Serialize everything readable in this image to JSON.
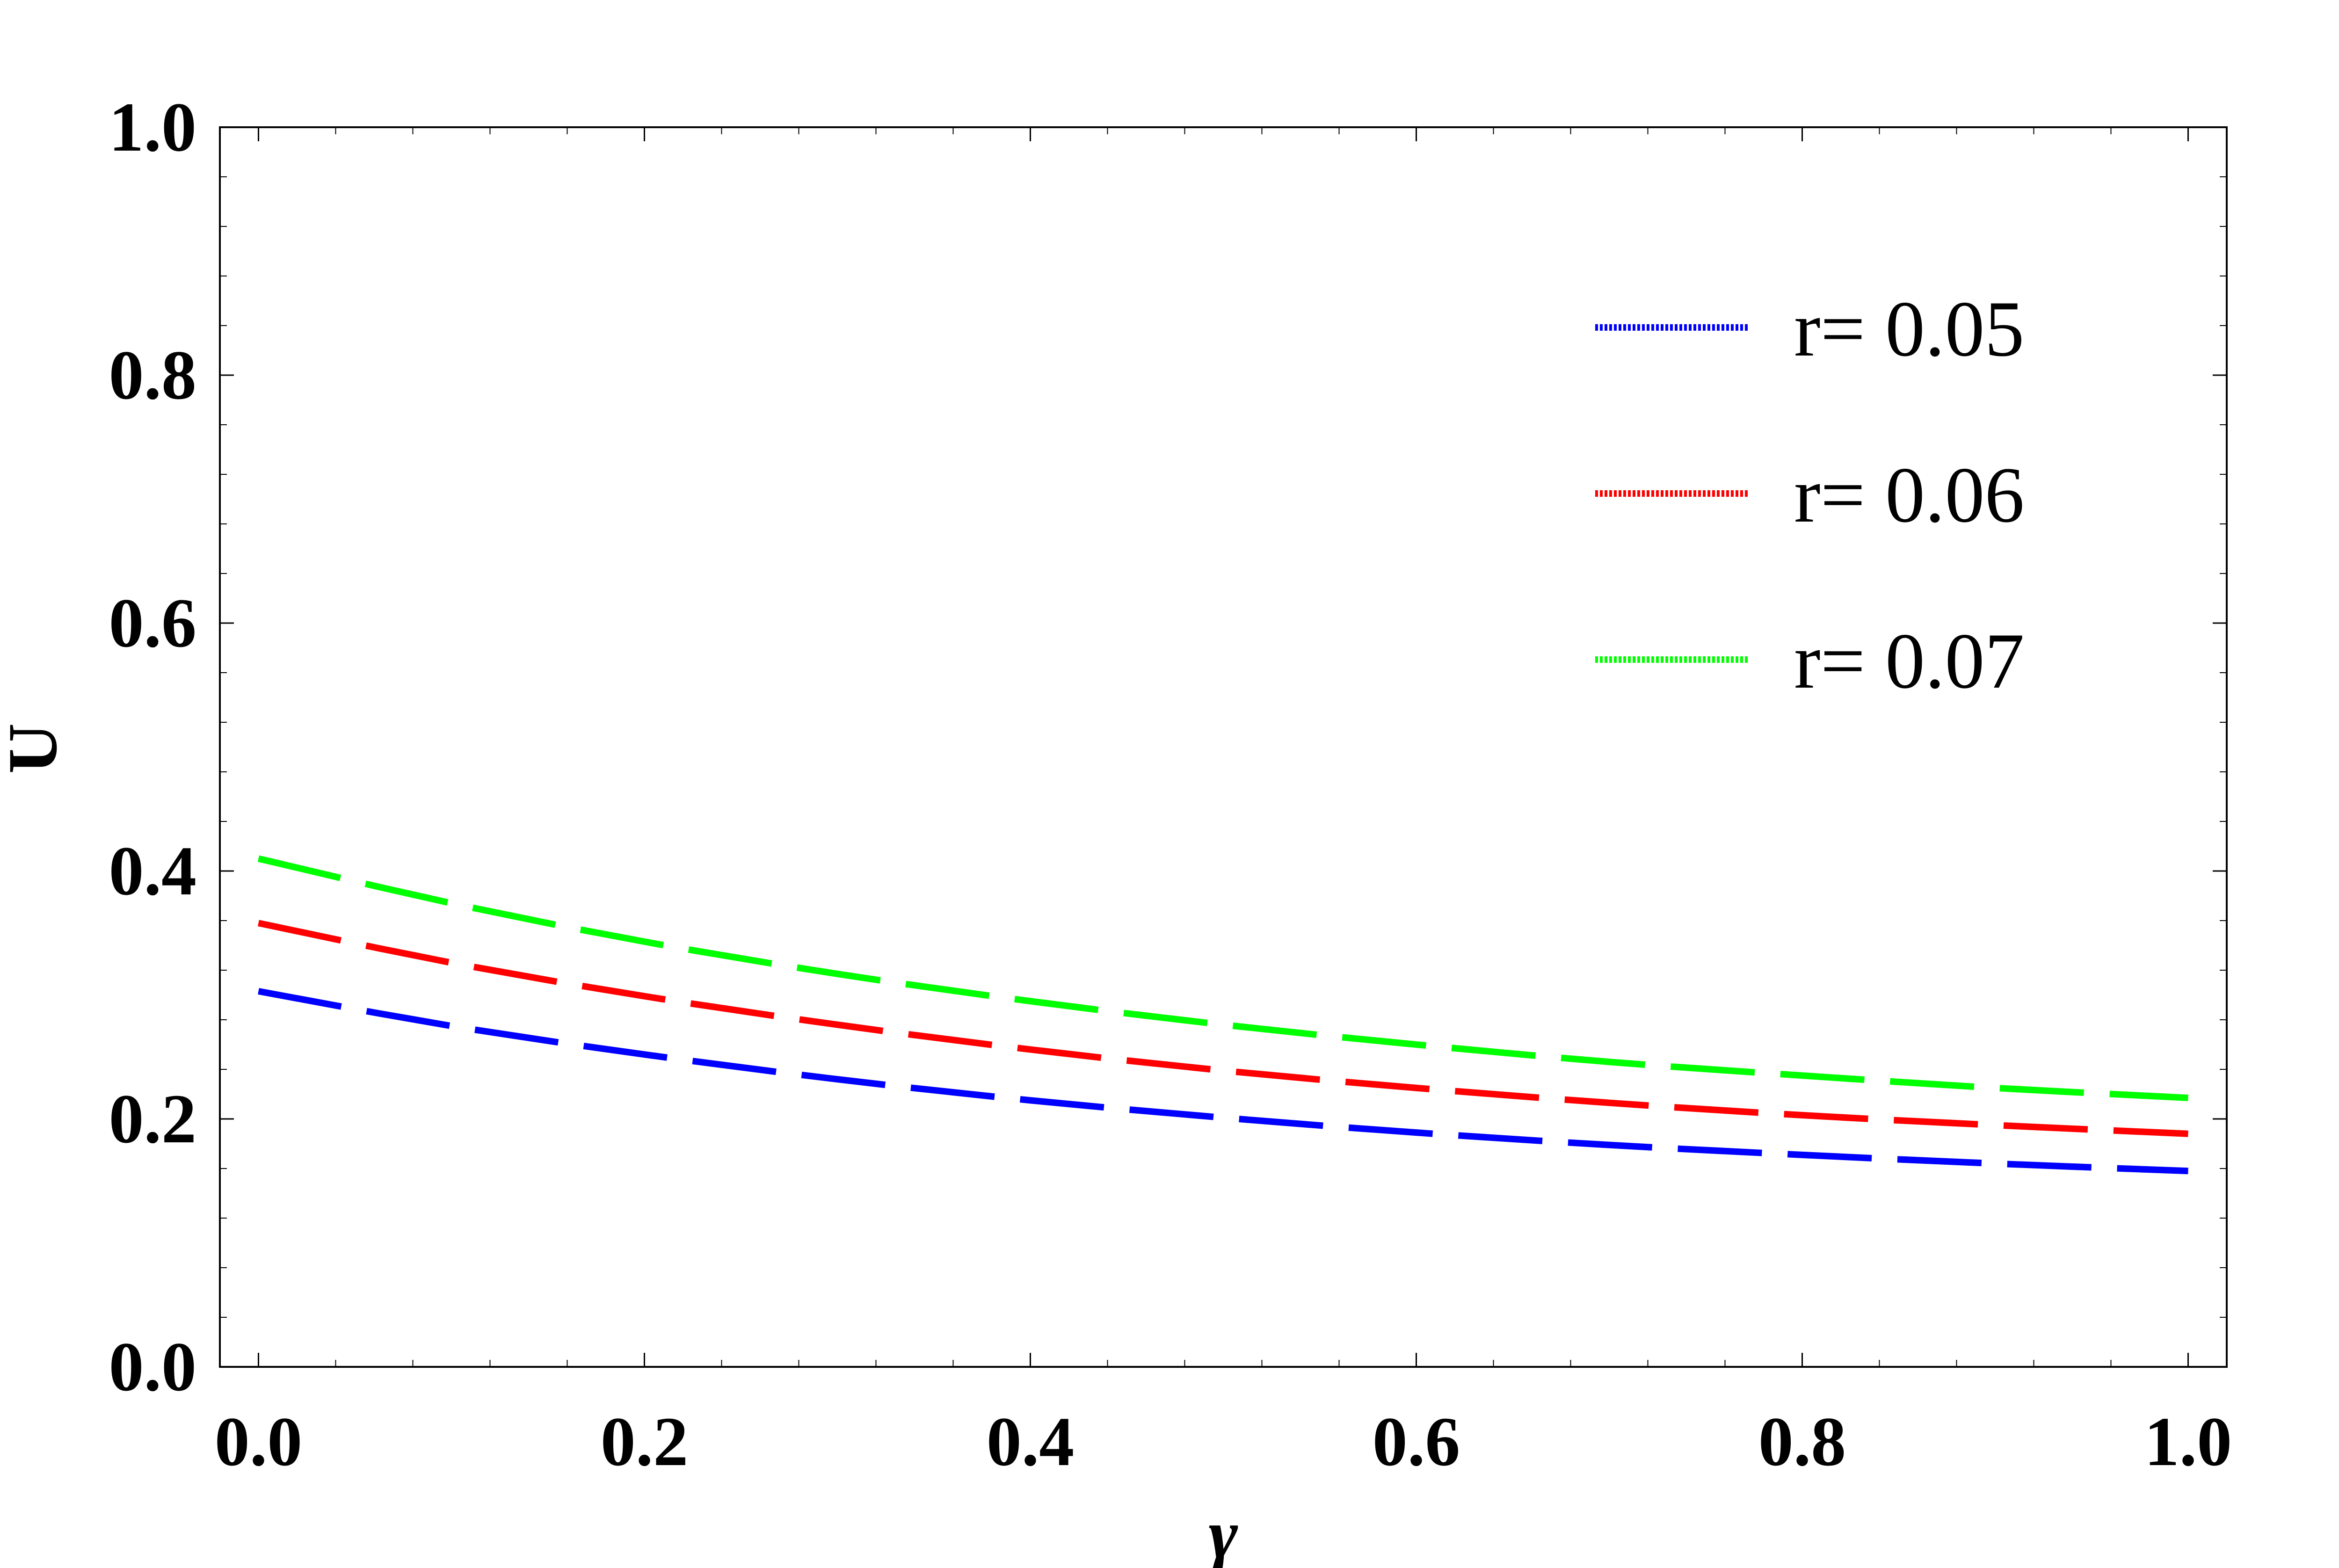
{
  "chart_data": {
    "type": "line",
    "title": "",
    "xlabel": "γ",
    "ylabel": "U",
    "xlim": [
      -0.02,
      1.02
    ],
    "ylim": [
      0.0,
      1.0
    ],
    "x_ticks": [
      0.0,
      0.2,
      0.4,
      0.6,
      0.8,
      1.0
    ],
    "x_tick_labels": [
      "0.0",
      "0.2",
      "0.4",
      "0.6",
      "0.8",
      "1.0"
    ],
    "y_ticks": [
      0.0,
      0.2,
      0.4,
      0.6,
      0.8,
      1.0
    ],
    "y_tick_labels": [
      "0.0",
      "0.2",
      "0.4",
      "0.6",
      "0.8",
      "1.0"
    ],
    "grid": false,
    "legend_position": "top-right",
    "x": [
      0.0,
      0.1,
      0.2,
      0.3,
      0.4,
      0.5,
      0.6,
      0.7,
      0.8,
      0.9,
      1.0
    ],
    "series": [
      {
        "name": "r= 0.05",
        "color": "#0000ff",
        "line_style": "dashed",
        "values": [
          0.303,
          0.275,
          0.252,
          0.232,
          0.215,
          0.201,
          0.189,
          0.179,
          0.171,
          0.164,
          0.158
        ]
      },
      {
        "name": "r= 0.06",
        "color": "#ff0000",
        "line_style": "dashed",
        "values": [
          0.358,
          0.326,
          0.299,
          0.276,
          0.256,
          0.239,
          0.225,
          0.213,
          0.203,
          0.195,
          0.188
        ]
      },
      {
        "name": "r= 0.07",
        "color": "#00ff00",
        "line_style": "dashed",
        "values": [
          0.41,
          0.374,
          0.343,
          0.317,
          0.295,
          0.276,
          0.26,
          0.246,
          0.235,
          0.225,
          0.217
        ]
      }
    ]
  }
}
